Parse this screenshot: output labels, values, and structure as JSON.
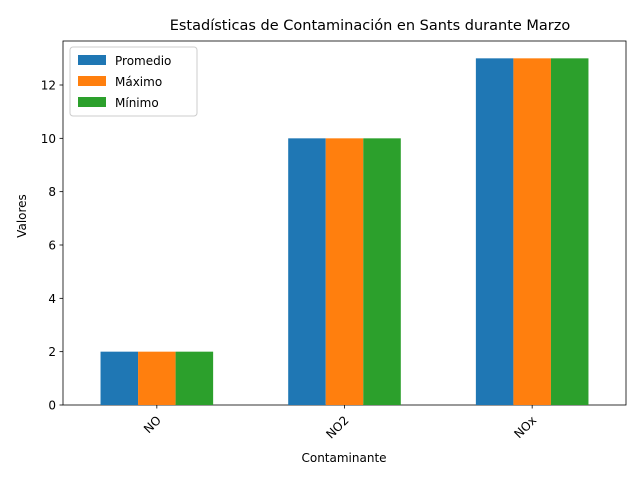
{
  "chart_data": {
    "type": "bar",
    "title": "Estadísticas de Contaminación en Sants durante Marzo",
    "xlabel": "Contaminante",
    "ylabel": "Valores",
    "categories": [
      "NO",
      "NO2",
      "NOx"
    ],
    "series": [
      {
        "name": "Promedio",
        "values": [
          2,
          10,
          13
        ],
        "color": "#1f77b4"
      },
      {
        "name": "Máximo",
        "values": [
          2,
          10,
          13
        ],
        "color": "#ff7f0e"
      },
      {
        "name": "Mínimo",
        "values": [
          2,
          10,
          13
        ],
        "color": "#2ca02c"
      }
    ],
    "ylim": [
      0,
      13.65
    ],
    "yticks": [
      "0",
      "2",
      "4",
      "6",
      "8",
      "10",
      "12"
    ],
    "legend_position": "top-left",
    "grid": false
  }
}
